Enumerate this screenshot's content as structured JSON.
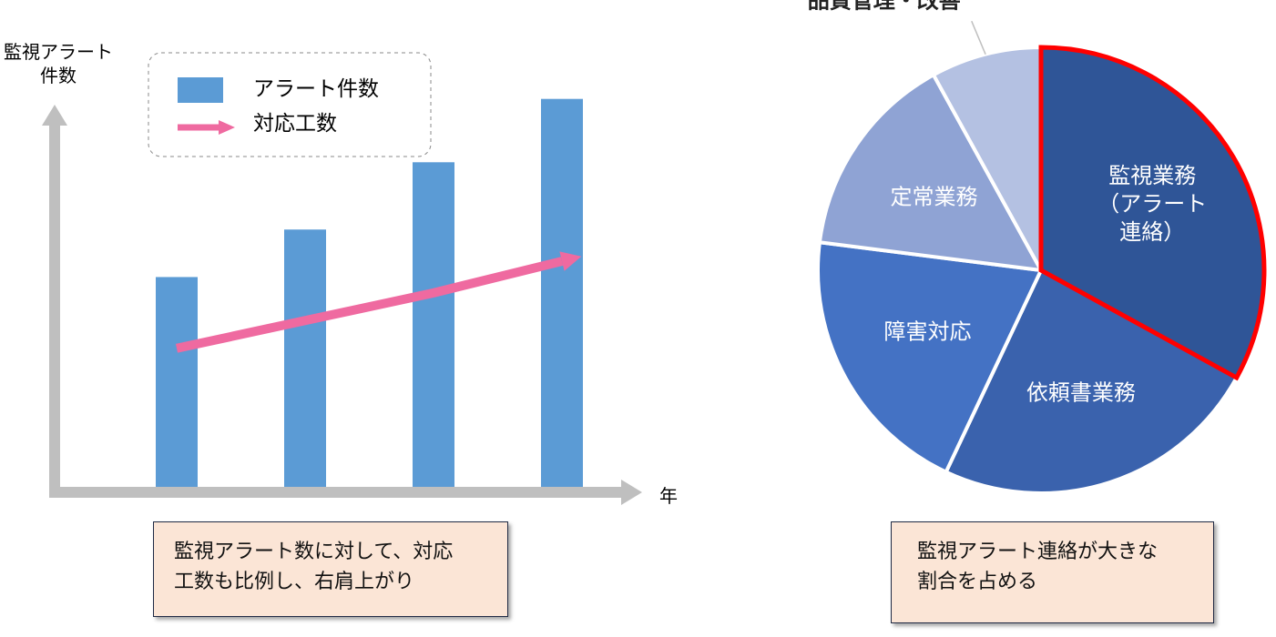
{
  "chart_data": [
    {
      "type": "bar",
      "ylabel": "監視アラート\n件数",
      "xlabel": "年",
      "categories": [
        null,
        null,
        null,
        null
      ],
      "ylim": [
        0,
        100
      ],
      "series": [
        {
          "name": "アラート件数",
          "type": "bar",
          "color": "#5b9bd5",
          "values": [
            53,
            65,
            82,
            98
          ]
        },
        {
          "name": "対応工数",
          "type": "line",
          "color": "#ef6aa0",
          "values": [
            35,
            42,
            49,
            57
          ]
        }
      ],
      "annotation": "監視アラート数に対して、対応\n工数も比例し、右肩上がり"
    },
    {
      "type": "pie",
      "categories": [
        "監視業務\n（アラート連絡）",
        "依頼書業務",
        "障害対応",
        "定常業務",
        "品質管理・改善"
      ],
      "values": [
        33,
        24,
        20,
        15,
        8
      ],
      "colors": [
        "#2f5597",
        "#3a62ad",
        "#4472c4",
        "#8fa3d4",
        "#b4c1e2"
      ],
      "highlight_index": 0,
      "highlight_color": "#ff0000",
      "annotation": "監視アラート連絡が大きな\n割合を占める"
    }
  ]
}
